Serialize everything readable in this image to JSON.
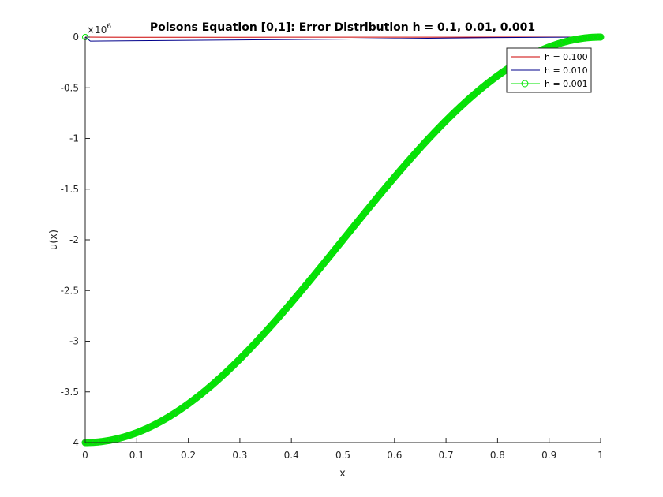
{
  "chart_data": {
    "type": "line",
    "title": "Poisons Equation [0,1]: Error Distribution h = 0.1, 0.01, 0.001",
    "xlabel": "x",
    "ylabel": "u(x)",
    "xlim": [
      0,
      1
    ],
    "ylim": [
      -4,
      0
    ],
    "y_exponent_label": "×10",
    "y_exponent_power": "6",
    "x_ticks": [
      "0",
      "0.1",
      "0.2",
      "0.3",
      "0.4",
      "0.5",
      "0.6",
      "0.7",
      "0.8",
      "0.9",
      "1"
    ],
    "y_ticks": [
      "0",
      "-0.5",
      "-1",
      "-1.5",
      "-2",
      "-2.5",
      "-3",
      "-3.5",
      "-4"
    ],
    "grid": false,
    "legend_position": "top-right",
    "series": [
      {
        "name": "h = 0.100",
        "color": "#cc0000",
        "marker": "none",
        "x": [
          0,
          0.1,
          0.2,
          0.3,
          0.4,
          0.5,
          0.6,
          0.7,
          0.8,
          0.9,
          1
        ],
        "y": [
          0,
          -0.002,
          -0.002,
          -0.002,
          -0.001,
          -0.001,
          -0.001,
          -0.001,
          0,
          0,
          0
        ]
      },
      {
        "name": "h = 0.010",
        "color": "#00008b",
        "marker": "none",
        "x": [
          0,
          0.01,
          0.1,
          0.2,
          0.3,
          0.4,
          0.5,
          0.6,
          0.7,
          0.8,
          0.9,
          1
        ],
        "y": [
          0,
          -0.04,
          -0.036,
          -0.032,
          -0.028,
          -0.024,
          -0.02,
          -0.015,
          -0.01,
          -0.005,
          -0.002,
          0
        ]
      },
      {
        "name": "h = 0.001",
        "color": "#00e600",
        "marker": "circle",
        "x_start": 0,
        "x_end": 1,
        "y_model": "-2e6*(1+cos(pi*x))",
        "y_at_x0": -4,
        "y_at_x1": 0,
        "spike_at_x0": [
          0,
          -4
        ]
      }
    ]
  }
}
